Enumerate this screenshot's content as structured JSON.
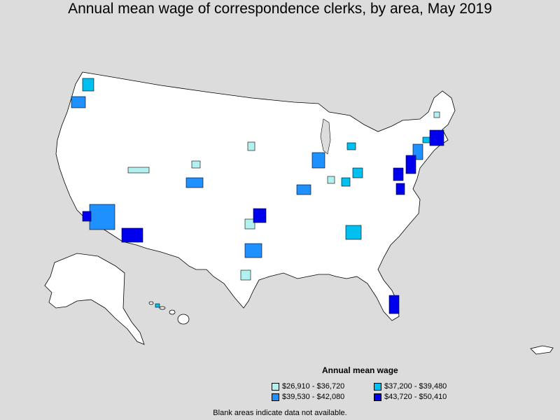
{
  "title": "Annual mean wage of correspondence clerks, by area, May 2019",
  "legend": {
    "title": "Annual mean wage",
    "items": [
      {
        "label": "$26,910 - $36,720",
        "color": "#b3f0f0"
      },
      {
        "label": "$37,200 - $39,480",
        "color": "#00c0f0"
      },
      {
        "label": "$39,530 - $42,080",
        "color": "#1e90ff"
      },
      {
        "label": "$43,720 - $50,410",
        "color": "#0000ee"
      }
    ]
  },
  "footnote": "Blank areas indicate data not available.",
  "colors": {
    "background": "#dcdcdc",
    "land": "#ffffff",
    "border": "#000000"
  }
}
